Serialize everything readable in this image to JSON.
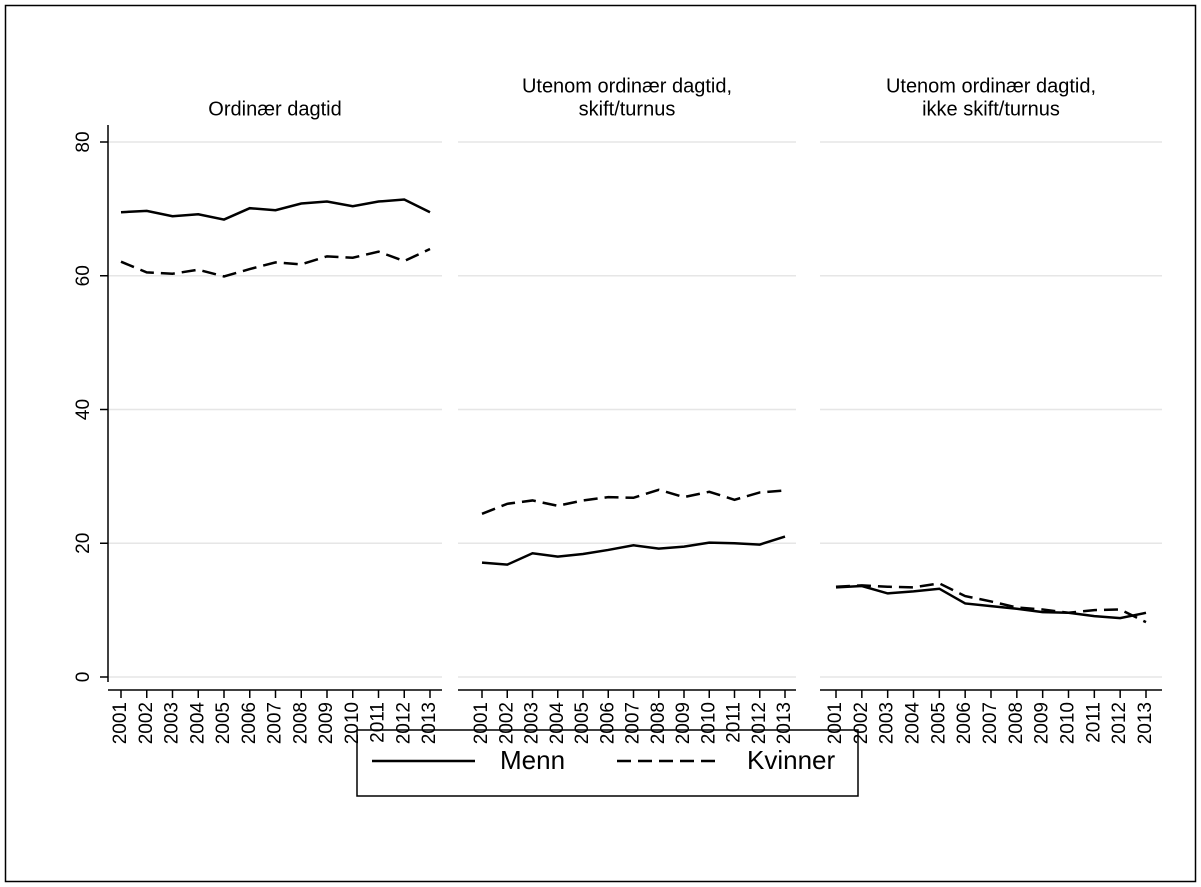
{
  "chart_data": [
    {
      "type": "line",
      "title": [
        "Ordinær dagtid"
      ],
      "x": [
        2001,
        2002,
        2003,
        2004,
        2005,
        2006,
        2007,
        2008,
        2009,
        2010,
        2011,
        2012,
        2013
      ],
      "series": [
        {
          "name": "Menn",
          "color": "#000000",
          "dash": "solid",
          "values": [
            69.5,
            69.7,
            68.9,
            69.2,
            68.4,
            70.1,
            69.8,
            70.8,
            71.1,
            70.4,
            71.1,
            71.4,
            69.5
          ]
        },
        {
          "name": "Kvinner",
          "color": "#000000",
          "dash": "dashed",
          "values": [
            62.1,
            60.5,
            60.3,
            60.9,
            59.9,
            61.0,
            62.0,
            61.7,
            62.9,
            62.7,
            63.6,
            62.2,
            64.0
          ]
        }
      ],
      "ylim": [
        0,
        80
      ],
      "yticks": [
        0,
        20,
        40,
        60,
        80
      ],
      "grid": true
    },
    {
      "type": "line",
      "title": [
        "Utenom ordinær dagtid,",
        "skift/turnus"
      ],
      "x": [
        2001,
        2002,
        2003,
        2004,
        2005,
        2006,
        2007,
        2008,
        2009,
        2010,
        2011,
        2012,
        2013
      ],
      "series": [
        {
          "name": "Menn",
          "color": "#000000",
          "dash": "solid",
          "values": [
            17.1,
            16.8,
            18.5,
            18.0,
            18.4,
            19.0,
            19.7,
            19.2,
            19.5,
            20.1,
            20.0,
            19.8,
            21.0
          ]
        },
        {
          "name": "Kvinner",
          "color": "#000000",
          "dash": "dashed",
          "values": [
            24.4,
            25.9,
            26.4,
            25.6,
            26.4,
            26.9,
            26.8,
            28.0,
            26.9,
            27.7,
            26.5,
            27.6,
            27.9
          ]
        }
      ],
      "ylim": [
        0,
        80
      ],
      "yticks": [
        0,
        20,
        40,
        60,
        80
      ],
      "grid": true
    },
    {
      "type": "line",
      "title": [
        "Utenom ordinær dagtid,",
        "ikke skift/turnus"
      ],
      "x": [
        2001,
        2002,
        2003,
        2004,
        2005,
        2006,
        2007,
        2008,
        2009,
        2010,
        2011,
        2012,
        2013
      ],
      "series": [
        {
          "name": "Menn",
          "color": "#000000",
          "dash": "solid",
          "values": [
            13.4,
            13.6,
            12.5,
            12.8,
            13.2,
            11.0,
            10.6,
            10.2,
            9.7,
            9.6,
            9.1,
            8.8,
            9.6
          ]
        },
        {
          "name": "Kvinner",
          "color": "#000000",
          "dash": "dashed",
          "values": [
            13.5,
            13.7,
            13.5,
            13.4,
            14.0,
            12.1,
            11.3,
            10.4,
            10.1,
            9.6,
            10.0,
            10.1,
            8.2
          ]
        }
      ],
      "ylim": [
        0,
        80
      ],
      "yticks": [
        0,
        20,
        40,
        60,
        80
      ],
      "grid": true
    }
  ]
}
